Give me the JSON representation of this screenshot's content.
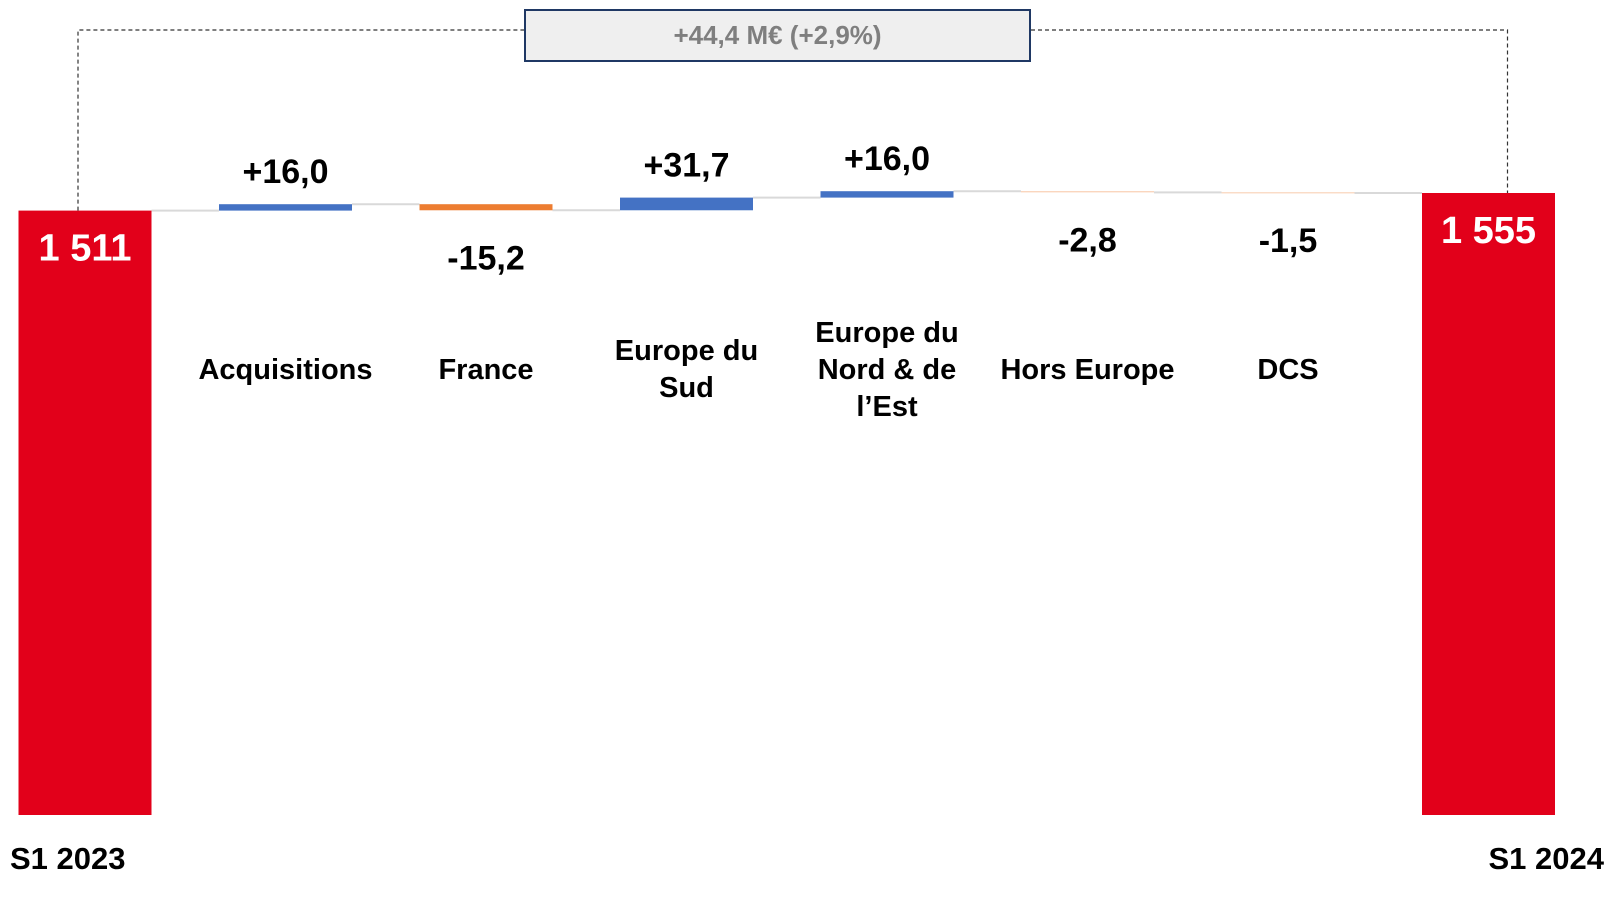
{
  "chart_data": {
    "type": "waterfall",
    "categories": [
      "S1 2023",
      "Acquisitions",
      "France",
      "Europe du Sud",
      "Europe du Nord & de l’Est",
      "Hors Europe",
      "DCS",
      "S1 2024"
    ],
    "values": [
      1511,
      16.0,
      -15.2,
      31.7,
      16.0,
      -2.8,
      -1.5,
      1555
    ],
    "value_labels": [
      "1 511",
      "+16,0",
      "-15,2",
      "+31,7",
      "+16,0",
      "-2,8",
      "-1,5",
      "1 555"
    ],
    "colors": {
      "increase": "#4472c4",
      "decrease": "#ed7d31",
      "total": "#e2001a"
    },
    "annotation": "+44,4 M€ (+2,9%)",
    "ylim": [
      0,
      1600
    ]
  }
}
